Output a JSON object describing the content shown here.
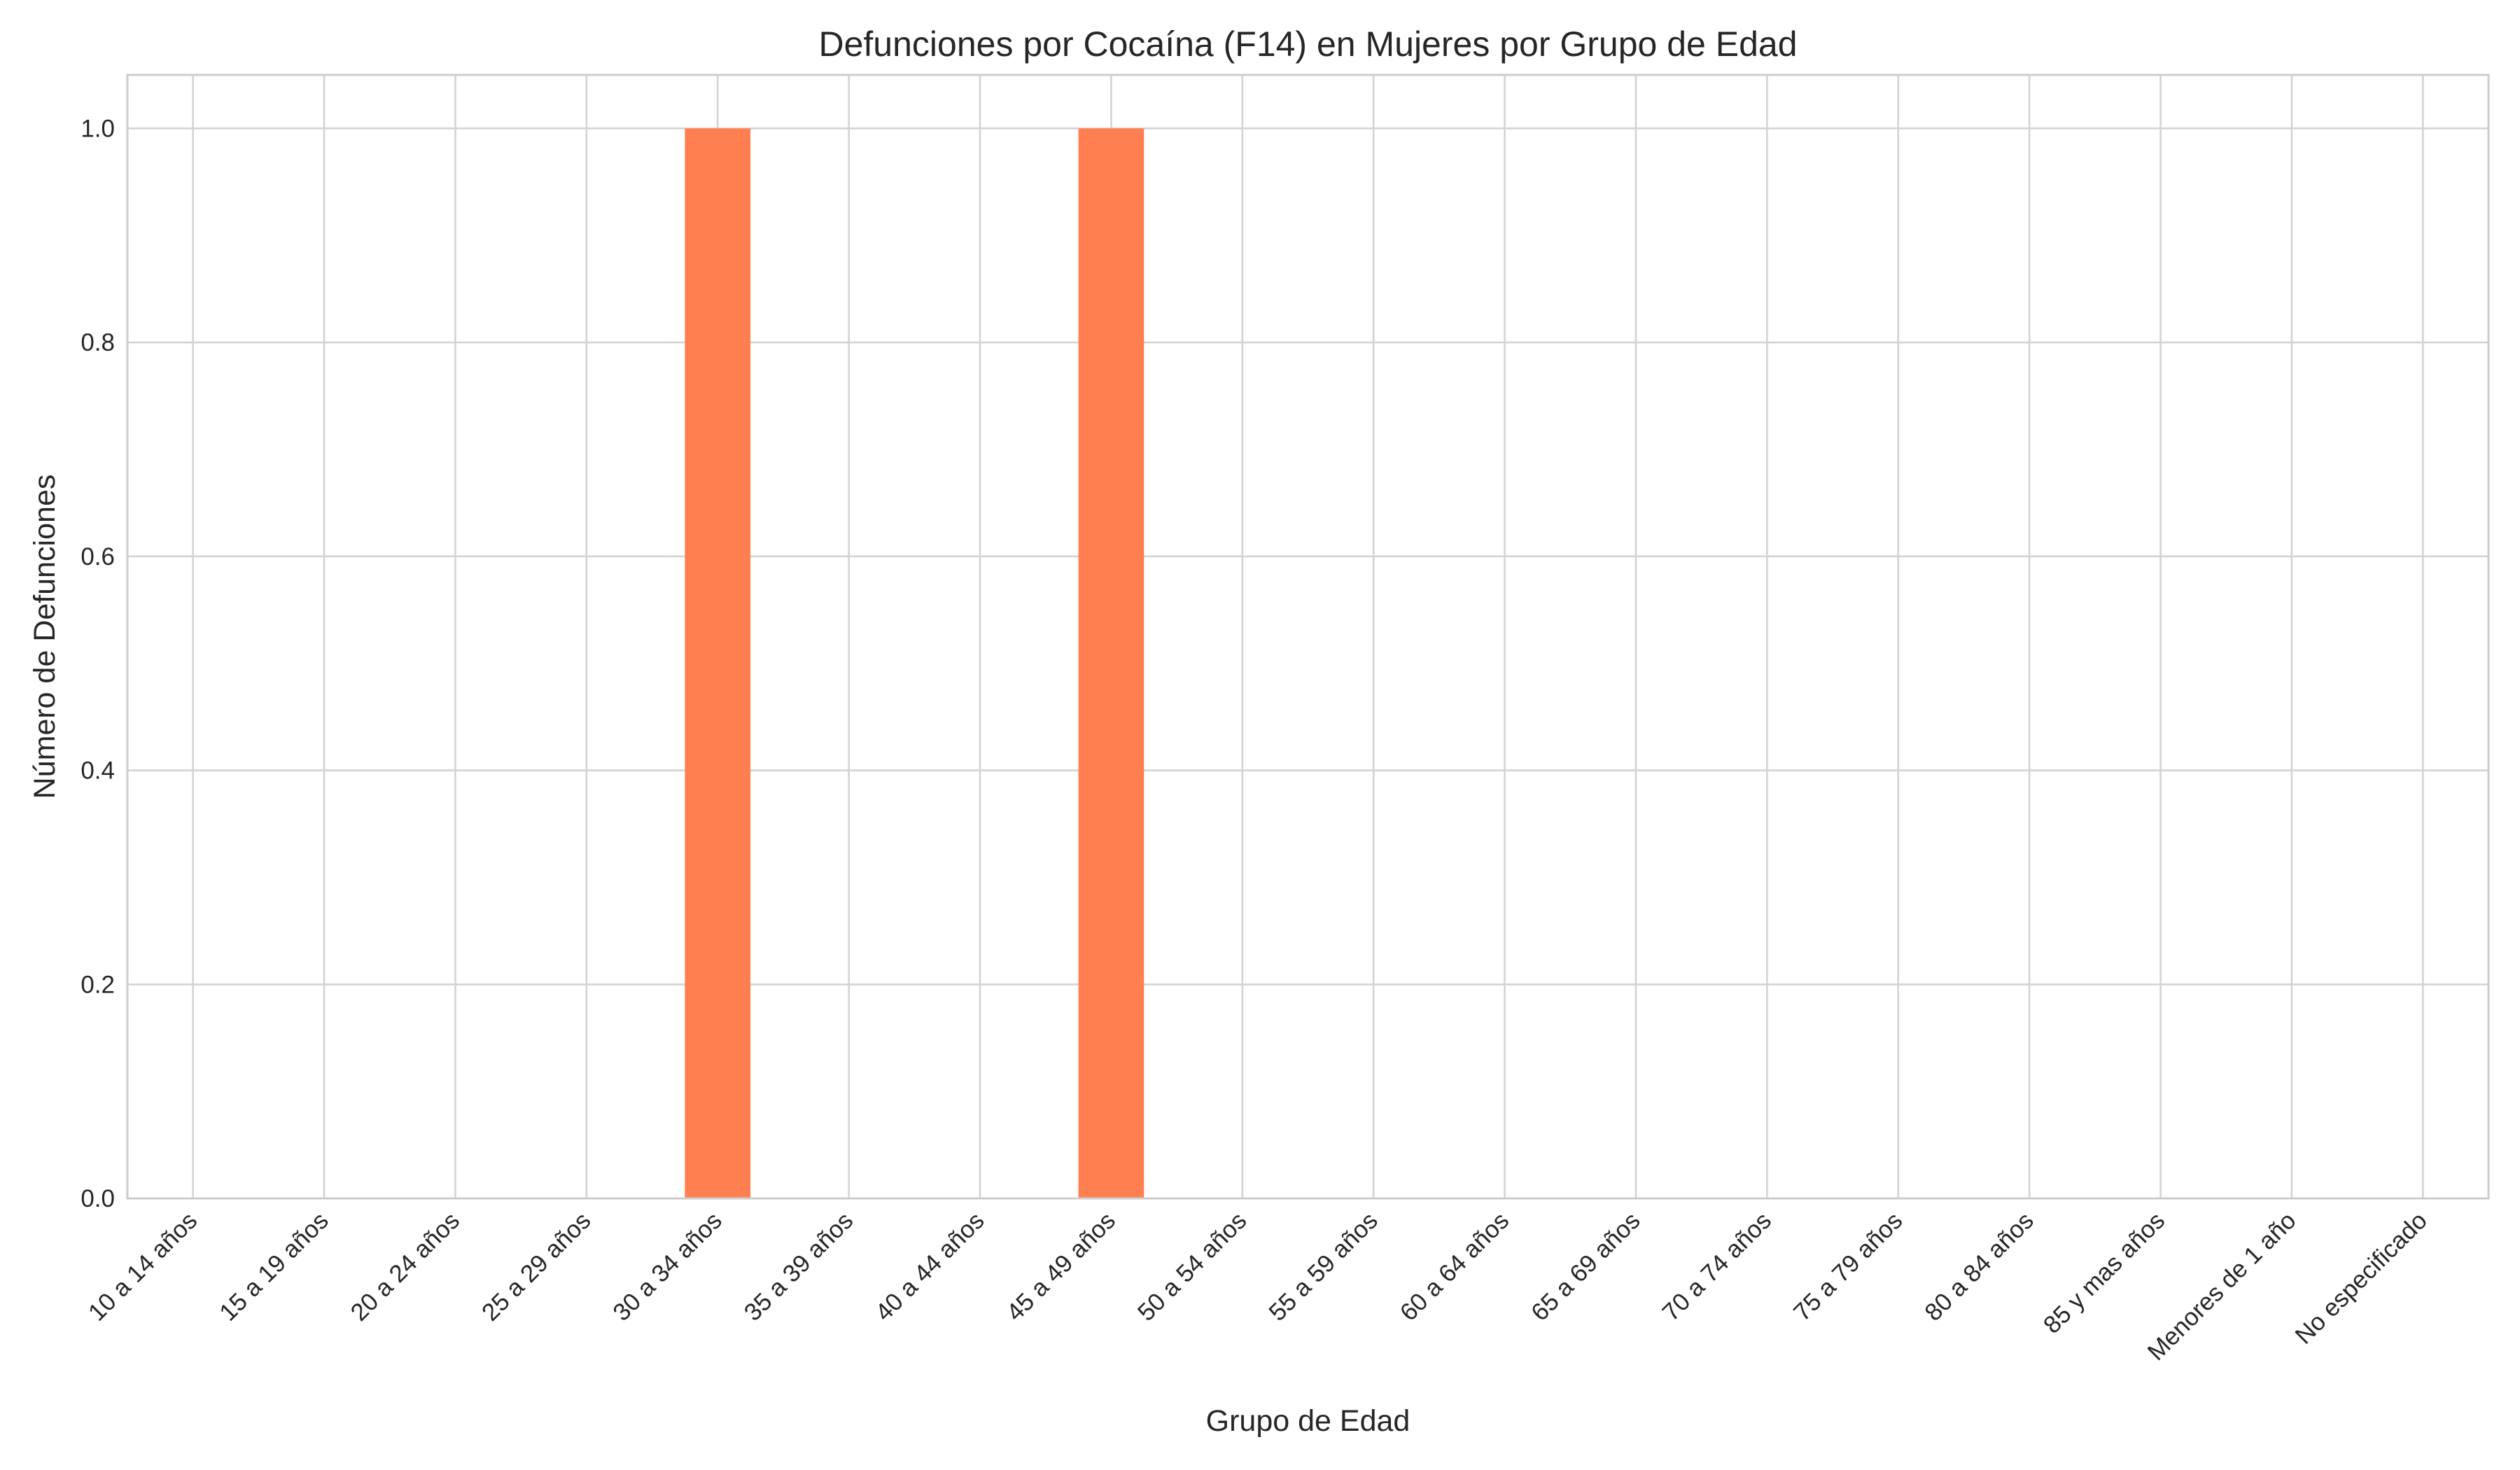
{
  "chart_data": {
    "type": "bar",
    "title": "Defunciones por Cocaína (F14) en Mujeres por Grupo de Edad",
    "xlabel": "Grupo de Edad",
    "ylabel": "Número de Defunciones",
    "categories": [
      "10 a 14 años",
      "15 a 19 años",
      "20 a 24 años",
      "25 a 29 años",
      "30 a 34 años",
      "35 a 39 años",
      "40 a 44 años",
      "45 a 49 años",
      "50 a 54 años",
      "55 a 59 años",
      "60 a 64 años",
      "65 a 69 años",
      "70 a 74 años",
      "75 a 79 años",
      "80 a 84 años",
      "85 y mas años",
      "Menores de 1 año",
      "No especificado"
    ],
    "values": [
      0,
      0,
      0,
      0,
      1,
      0,
      0,
      1,
      0,
      0,
      0,
      0,
      0,
      0,
      0,
      0,
      0,
      0
    ],
    "ylim": [
      0,
      1.05
    ],
    "yticks": [
      "0.0",
      "0.2",
      "0.4",
      "0.6",
      "0.8",
      "1.0"
    ],
    "grid": true,
    "legend": "none",
    "bar_color": "#ff7f50"
  }
}
